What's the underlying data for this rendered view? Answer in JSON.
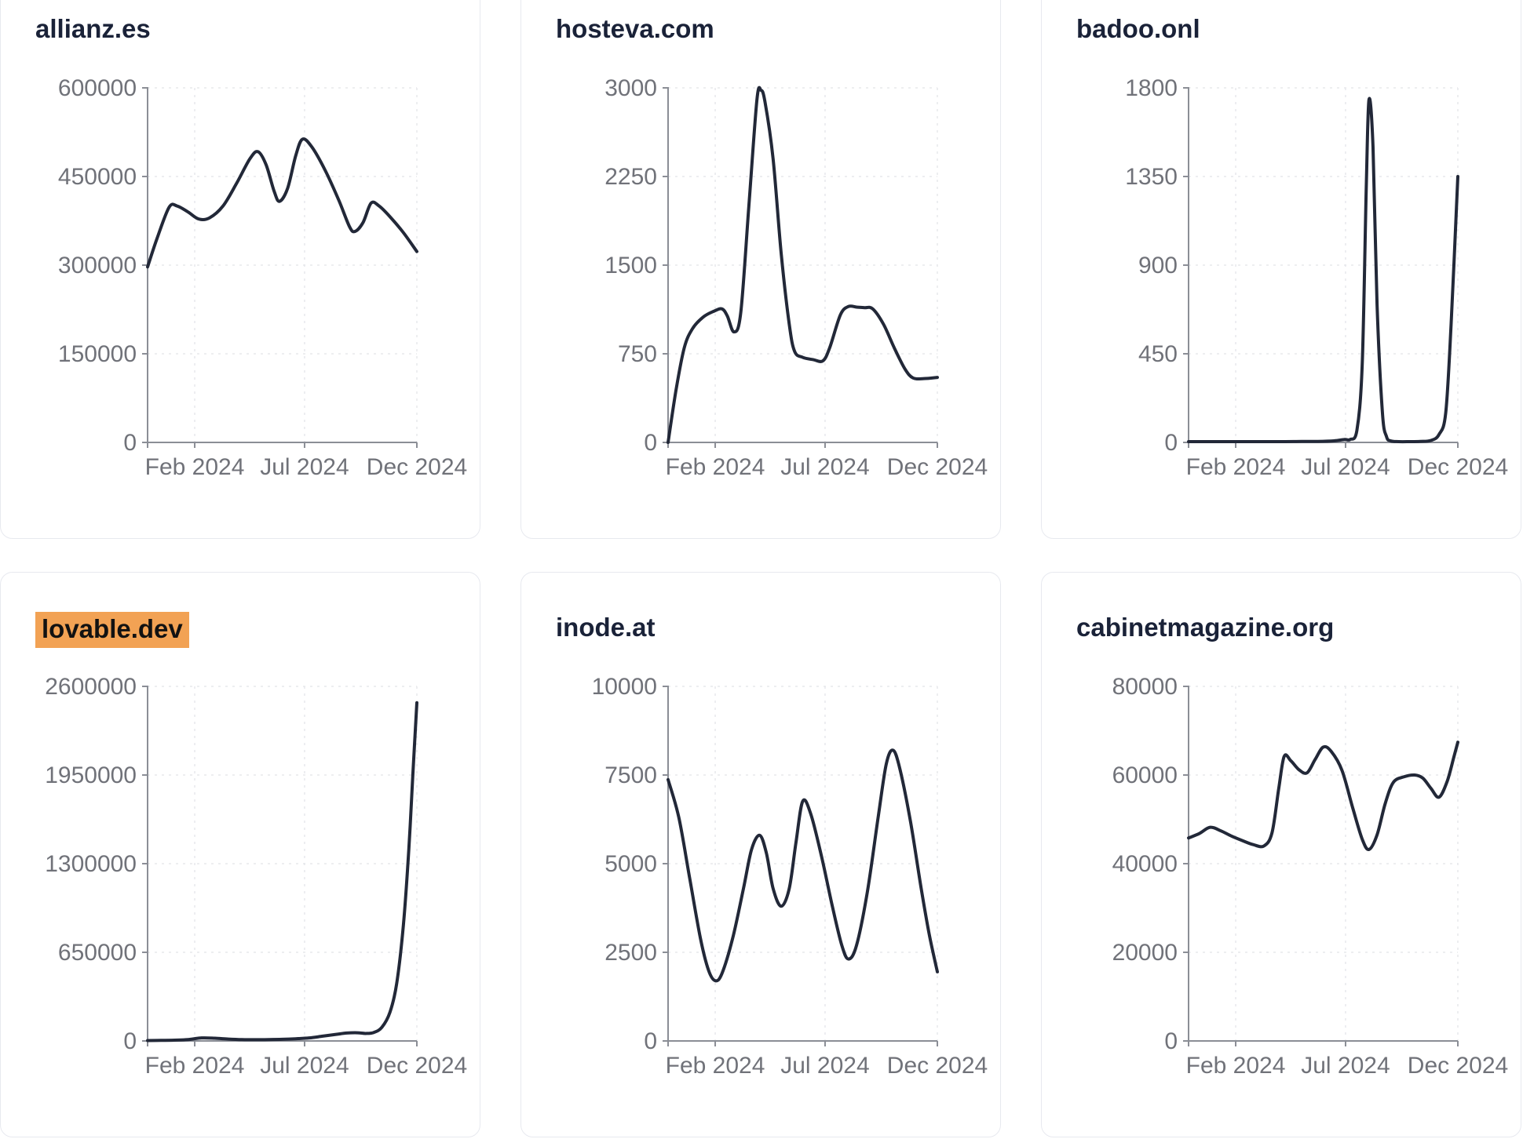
{
  "page": {
    "background": "#ffffff",
    "description": "Grid of six website-traffic line chart cards for calendar year 2024"
  },
  "colors": {
    "line": "#222838",
    "title": "#1a2238",
    "title_highlight_bg": "#f2a254",
    "title_highlight_text": "#121212",
    "axis": "#8b8e96",
    "tick_text": "#707279",
    "gridline": "#e7e8ec",
    "card_border": "#e7e9ef",
    "card_bg": "#ffffff"
  },
  "chart_data": [
    {
      "type": "line",
      "title": "allianz.es",
      "title_highlight": false,
      "xlabel": "",
      "ylabel": "",
      "ylim": [
        0,
        600000
      ],
      "y_ticks": [
        0,
        150000,
        300000,
        450000,
        600000
      ],
      "x_ticks": [
        {
          "label": "Feb 2024",
          "pos": 0.175
        },
        {
          "label": "Jul 2024",
          "pos": 0.583
        },
        {
          "label": "Dec 2024",
          "pos": 1.0
        }
      ],
      "points": [
        [
          0.0,
          297000
        ],
        [
          0.035,
          345000
        ],
        [
          0.08,
          398000
        ],
        [
          0.11,
          400000
        ],
        [
          0.15,
          390000
        ],
        [
          0.19,
          378000
        ],
        [
          0.23,
          380000
        ],
        [
          0.28,
          400000
        ],
        [
          0.33,
          438000
        ],
        [
          0.38,
          480000
        ],
        [
          0.41,
          492000
        ],
        [
          0.44,
          470000
        ],
        [
          0.47,
          425000
        ],
        [
          0.49,
          408000
        ],
        [
          0.52,
          430000
        ],
        [
          0.55,
          485000
        ],
        [
          0.575,
          513000
        ],
        [
          0.61,
          500000
        ],
        [
          0.66,
          460000
        ],
        [
          0.71,
          410000
        ],
        [
          0.75,
          365000
        ],
        [
          0.77,
          357000
        ],
        [
          0.8,
          372000
        ],
        [
          0.83,
          405000
        ],
        [
          0.86,
          400000
        ],
        [
          0.9,
          382000
        ],
        [
          0.95,
          355000
        ],
        [
          1.0,
          323000
        ]
      ]
    },
    {
      "type": "line",
      "title": "hosteva.com",
      "title_highlight": false,
      "xlabel": "",
      "ylabel": "",
      "ylim": [
        0,
        3000
      ],
      "y_ticks": [
        0,
        750,
        1500,
        2250,
        3000
      ],
      "x_ticks": [
        {
          "label": "Feb 2024",
          "pos": 0.175
        },
        {
          "label": "Jul 2024",
          "pos": 0.583
        },
        {
          "label": "Dec 2024",
          "pos": 1.0
        }
      ],
      "points": [
        [
          0.0,
          0
        ],
        [
          0.03,
          450
        ],
        [
          0.06,
          800
        ],
        [
          0.09,
          960
        ],
        [
          0.13,
          1060
        ],
        [
          0.17,
          1110
        ],
        [
          0.2,
          1130
        ],
        [
          0.22,
          1070
        ],
        [
          0.245,
          935
        ],
        [
          0.27,
          1100
        ],
        [
          0.3,
          2000
        ],
        [
          0.33,
          2900
        ],
        [
          0.345,
          2980
        ],
        [
          0.36,
          2880
        ],
        [
          0.39,
          2400
        ],
        [
          0.42,
          1600
        ],
        [
          0.45,
          1000
        ],
        [
          0.47,
          770
        ],
        [
          0.5,
          720
        ],
        [
          0.54,
          700
        ],
        [
          0.575,
          690
        ],
        [
          0.6,
          800
        ],
        [
          0.64,
          1080
        ],
        [
          0.67,
          1150
        ],
        [
          0.7,
          1145
        ],
        [
          0.73,
          1140
        ],
        [
          0.76,
          1130
        ],
        [
          0.8,
          1000
        ],
        [
          0.84,
          800
        ],
        [
          0.88,
          620
        ],
        [
          0.91,
          545
        ],
        [
          0.95,
          540
        ],
        [
          1.0,
          550
        ]
      ]
    },
    {
      "type": "line",
      "title": "badoo.onl",
      "title_highlight": false,
      "xlabel": "",
      "ylabel": "",
      "ylim": [
        0,
        1800
      ],
      "y_ticks": [
        0,
        450,
        900,
        1350,
        1800
      ],
      "x_ticks": [
        {
          "label": "Feb 2024",
          "pos": 0.175
        },
        {
          "label": "Jul 2024",
          "pos": 0.583
        },
        {
          "label": "Dec 2024",
          "pos": 1.0
        }
      ],
      "points": [
        [
          0.0,
          4
        ],
        [
          0.06,
          4
        ],
        [
          0.12,
          4
        ],
        [
          0.18,
          4
        ],
        [
          0.24,
          4
        ],
        [
          0.3,
          4
        ],
        [
          0.36,
          4
        ],
        [
          0.42,
          5
        ],
        [
          0.48,
          5
        ],
        [
          0.54,
          8
        ],
        [
          0.58,
          15
        ],
        [
          0.6,
          15
        ],
        [
          0.625,
          60
        ],
        [
          0.645,
          400
        ],
        [
          0.66,
          1300
        ],
        [
          0.67,
          1740
        ],
        [
          0.685,
          1500
        ],
        [
          0.7,
          700
        ],
        [
          0.72,
          150
        ],
        [
          0.735,
          30
        ],
        [
          0.75,
          8
        ],
        [
          0.78,
          4
        ],
        [
          0.82,
          4
        ],
        [
          0.86,
          5
        ],
        [
          0.9,
          10
        ],
        [
          0.93,
          40
        ],
        [
          0.955,
          150
        ],
        [
          0.975,
          600
        ],
        [
          1.0,
          1350
        ]
      ]
    },
    {
      "type": "line",
      "title": "lovable.dev",
      "title_highlight": true,
      "xlabel": "",
      "ylabel": "",
      "ylim": [
        0,
        2600000
      ],
      "y_ticks": [
        0,
        650000,
        1300000,
        1950000,
        2600000
      ],
      "x_ticks": [
        {
          "label": "Feb 2024",
          "pos": 0.175
        },
        {
          "label": "Jul 2024",
          "pos": 0.583
        },
        {
          "label": "Dec 2024",
          "pos": 1.0
        }
      ],
      "points": [
        [
          0.0,
          3000
        ],
        [
          0.05,
          4000
        ],
        [
          0.1,
          6000
        ],
        [
          0.15,
          10000
        ],
        [
          0.2,
          22000
        ],
        [
          0.25,
          20000
        ],
        [
          0.3,
          14000
        ],
        [
          0.35,
          10000
        ],
        [
          0.4,
          9000
        ],
        [
          0.45,
          10000
        ],
        [
          0.5,
          12000
        ],
        [
          0.55,
          16000
        ],
        [
          0.6,
          22000
        ],
        [
          0.65,
          35000
        ],
        [
          0.7,
          48000
        ],
        [
          0.74,
          58000
        ],
        [
          0.78,
          60000
        ],
        [
          0.81,
          55000
        ],
        [
          0.84,
          62000
        ],
        [
          0.87,
          100000
        ],
        [
          0.9,
          210000
        ],
        [
          0.925,
          420000
        ],
        [
          0.95,
          850000
        ],
        [
          0.97,
          1400000
        ],
        [
          0.985,
          1950000
        ],
        [
          1.0,
          2480000
        ]
      ]
    },
    {
      "type": "line",
      "title": "inode.at",
      "title_highlight": false,
      "xlabel": "",
      "ylabel": "",
      "ylim": [
        0,
        10000
      ],
      "y_ticks": [
        0,
        2500,
        5000,
        7500,
        10000
      ],
      "x_ticks": [
        {
          "label": "Feb 2024",
          "pos": 0.175
        },
        {
          "label": "Jul 2024",
          "pos": 0.583
        },
        {
          "label": "Dec 2024",
          "pos": 1.0
        }
      ],
      "points": [
        [
          0.0,
          7370
        ],
        [
          0.04,
          6300
        ],
        [
          0.08,
          4600
        ],
        [
          0.12,
          2900
        ],
        [
          0.15,
          2000
        ],
        [
          0.175,
          1700
        ],
        [
          0.2,
          1900
        ],
        [
          0.24,
          2900
        ],
        [
          0.28,
          4300
        ],
        [
          0.31,
          5400
        ],
        [
          0.34,
          5800
        ],
        [
          0.365,
          5300
        ],
        [
          0.39,
          4300
        ],
        [
          0.42,
          3800
        ],
        [
          0.45,
          4300
        ],
        [
          0.475,
          5600
        ],
        [
          0.5,
          6760
        ],
        [
          0.53,
          6400
        ],
        [
          0.57,
          5200
        ],
        [
          0.61,
          3800
        ],
        [
          0.645,
          2700
        ],
        [
          0.67,
          2310
        ],
        [
          0.7,
          2700
        ],
        [
          0.74,
          4200
        ],
        [
          0.78,
          6300
        ],
        [
          0.81,
          7800
        ],
        [
          0.835,
          8200
        ],
        [
          0.86,
          7700
        ],
        [
          0.9,
          6200
        ],
        [
          0.94,
          4300
        ],
        [
          0.97,
          3000
        ],
        [
          1.0,
          1950
        ]
      ]
    },
    {
      "type": "line",
      "title": "cabinetmagazine.org",
      "title_highlight": false,
      "xlabel": "",
      "ylabel": "",
      "ylim": [
        0,
        80000
      ],
      "y_ticks": [
        0,
        20000,
        40000,
        60000,
        80000
      ],
      "x_ticks": [
        {
          "label": "Feb 2024",
          "pos": 0.175
        },
        {
          "label": "Jul 2024",
          "pos": 0.583
        },
        {
          "label": "Dec 2024",
          "pos": 1.0
        }
      ],
      "points": [
        [
          0.0,
          45800
        ],
        [
          0.04,
          46800
        ],
        [
          0.08,
          48200
        ],
        [
          0.12,
          47400
        ],
        [
          0.16,
          46200
        ],
        [
          0.2,
          45200
        ],
        [
          0.24,
          44300
        ],
        [
          0.28,
          44000
        ],
        [
          0.31,
          47000
        ],
        [
          0.335,
          57000
        ],
        [
          0.355,
          64200
        ],
        [
          0.38,
          63200
        ],
        [
          0.41,
          61200
        ],
        [
          0.44,
          60500
        ],
        [
          0.47,
          63500
        ],
        [
          0.5,
          66300
        ],
        [
          0.53,
          65300
        ],
        [
          0.57,
          61000
        ],
        [
          0.61,
          52500
        ],
        [
          0.645,
          45500
        ],
        [
          0.67,
          43200
        ],
        [
          0.7,
          46500
        ],
        [
          0.73,
          53500
        ],
        [
          0.76,
          58300
        ],
        [
          0.8,
          59600
        ],
        [
          0.84,
          60000
        ],
        [
          0.87,
          59300
        ],
        [
          0.9,
          57000
        ],
        [
          0.93,
          55000
        ],
        [
          0.96,
          58500
        ],
        [
          0.985,
          64000
        ],
        [
          1.0,
          67400
        ]
      ]
    }
  ]
}
